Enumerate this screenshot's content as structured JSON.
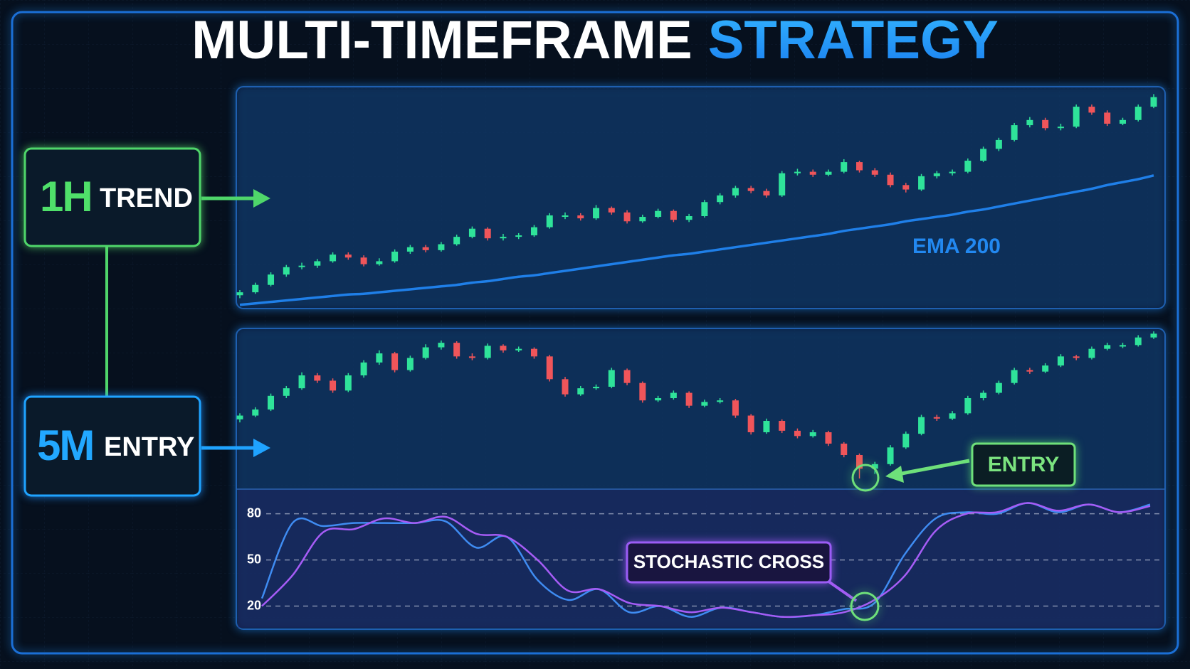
{
  "title": {
    "main": "MULTI-TIMEFRAME",
    "accent": "STRATEGY"
  },
  "timeframes": [
    {
      "code": "1H",
      "label": "TREND"
    },
    {
      "code": "5M",
      "label": "ENTRY"
    }
  ],
  "chart_data": [
    {
      "type": "candlestick",
      "ylim": [
        -10,
        290
      ],
      "up_color": "#2fe39a",
      "down_color": "#f0555a",
      "candles": [
        [
          8,
          15,
          4,
          12
        ],
        [
          12,
          25,
          10,
          22
        ],
        [
          22,
          39,
          20,
          36
        ],
        [
          36,
          49,
          33,
          46
        ],
        [
          46,
          52,
          43,
          48
        ],
        [
          48,
          57,
          45,
          54
        ],
        [
          54,
          66,
          52,
          63
        ],
        [
          63,
          66,
          56,
          59
        ],
        [
          59,
          62,
          47,
          50
        ],
        [
          50,
          58,
          48,
          54
        ],
        [
          54,
          70,
          52,
          67
        ],
        [
          67,
          76,
          64,
          73
        ],
        [
          73,
          76,
          66,
          69
        ],
        [
          69,
          80,
          67,
          77
        ],
        [
          77,
          90,
          75,
          87
        ],
        [
          87,
          101,
          85,
          98
        ],
        [
          98,
          100,
          82,
          85
        ],
        [
          85,
          91,
          82,
          87
        ],
        [
          87,
          92,
          84,
          89
        ],
        [
          89,
          103,
          87,
          100
        ],
        [
          100,
          119,
          98,
          116
        ],
        [
          114,
          120,
          111,
          116
        ],
        [
          116,
          119,
          109,
          112
        ],
        [
          112,
          130,
          110,
          126
        ],
        [
          126,
          128,
          117,
          120
        ],
        [
          120,
          123,
          105,
          108
        ],
        [
          108,
          117,
          106,
          114
        ],
        [
          114,
          125,
          112,
          122
        ],
        [
          122,
          124,
          107,
          110
        ],
        [
          110,
          118,
          107,
          115
        ],
        [
          115,
          137,
          113,
          134
        ],
        [
          134,
          146,
          131,
          143
        ],
        [
          143,
          156,
          140,
          153
        ],
        [
          153,
          156,
          146,
          149
        ],
        [
          149,
          152,
          140,
          143
        ],
        [
          143,
          176,
          141,
          173
        ],
        [
          173,
          179,
          170,
          175
        ],
        [
          175,
          178,
          168,
          171
        ],
        [
          171,
          178,
          169,
          175
        ],
        [
          175,
          192,
          173,
          188
        ],
        [
          188,
          190,
          174,
          177
        ],
        [
          177,
          180,
          168,
          171
        ],
        [
          171,
          174,
          154,
          157
        ],
        [
          157,
          160,
          147,
          151
        ],
        [
          151,
          172,
          149,
          169
        ],
        [
          169,
          176,
          166,
          173
        ],
        [
          173,
          178,
          170,
          175
        ],
        [
          175,
          193,
          173,
          190
        ],
        [
          190,
          209,
          188,
          206
        ],
        [
          206,
          221,
          203,
          218
        ],
        [
          218,
          241,
          216,
          238
        ],
        [
          238,
          249,
          235,
          245
        ],
        [
          245,
          248,
          231,
          234
        ],
        [
          234,
          240,
          231,
          236
        ],
        [
          236,
          266,
          234,
          263
        ],
        [
          263,
          266,
          252,
          255
        ],
        [
          255,
          258,
          237,
          240
        ],
        [
          240,
          248,
          238,
          245
        ],
        [
          245,
          266,
          243,
          263
        ],
        [
          263,
          280,
          261,
          276
        ]
      ],
      "ema": {
        "name": "EMA 200",
        "color": "#1f7fe8",
        "values": [
          -5,
          -3,
          -1,
          1,
          3,
          5,
          7,
          9,
          10,
          12,
          14,
          16,
          18,
          20,
          22,
          25,
          27,
          30,
          33,
          35,
          38,
          41,
          44,
          47,
          50,
          53,
          56,
          59,
          62,
          64,
          67,
          70,
          73,
          76,
          79,
          82,
          85,
          88,
          91,
          95,
          98,
          101,
          104,
          108,
          111,
          114,
          117,
          121,
          124,
          128,
          132,
          136,
          140,
          144,
          148,
          152,
          157,
          161,
          165,
          170
        ]
      }
    },
    {
      "type": "candlestick",
      "ylim": [
        0,
        210
      ],
      "up_color": "#2fe39a",
      "down_color": "#f0555a",
      "annotation": "ENTRY",
      "candles": [
        [
          92,
          100,
          88,
          97
        ],
        [
          97,
          108,
          95,
          105
        ],
        [
          105,
          126,
          103,
          123
        ],
        [
          123,
          136,
          120,
          133
        ],
        [
          133,
          154,
          131,
          150
        ],
        [
          150,
          153,
          140,
          143
        ],
        [
          143,
          146,
          127,
          130
        ],
        [
          130,
          153,
          128,
          150
        ],
        [
          150,
          170,
          147,
          167
        ],
        [
          167,
          183,
          164,
          179
        ],
        [
          179,
          181,
          154,
          157
        ],
        [
          157,
          176,
          155,
          173
        ],
        [
          173,
          191,
          171,
          187
        ],
        [
          187,
          196,
          184,
          193
        ],
        [
          193,
          195,
          172,
          175
        ],
        [
          175,
          179,
          170,
          173
        ],
        [
          173,
          192,
          171,
          189
        ],
        [
          189,
          191,
          180,
          183
        ],
        [
          183,
          188,
          181,
          185
        ],
        [
          185,
          187,
          172,
          175
        ],
        [
          175,
          177,
          142,
          145
        ],
        [
          145,
          148,
          122,
          125
        ],
        [
          125,
          136,
          123,
          133
        ],
        [
          133,
          138,
          131,
          135
        ],
        [
          135,
          160,
          133,
          157
        ],
        [
          157,
          159,
          137,
          140
        ],
        [
          140,
          142,
          114,
          117
        ],
        [
          117,
          123,
          115,
          120
        ],
        [
          120,
          130,
          118,
          127
        ],
        [
          127,
          129,
          107,
          110
        ],
        [
          110,
          118,
          108,
          115
        ],
        [
          115,
          120,
          113,
          117
        ],
        [
          117,
          119,
          94,
          97
        ],
        [
          97,
          99,
          72,
          75
        ],
        [
          75,
          93,
          73,
          90
        ],
        [
          90,
          92,
          74,
          77
        ],
        [
          77,
          80,
          67,
          70
        ],
        [
          70,
          78,
          68,
          75
        ],
        [
          75,
          77,
          57,
          60
        ],
        [
          60,
          62,
          42,
          45
        ],
        [
          45,
          47,
          14,
          27
        ],
        [
          27,
          36,
          20,
          33
        ],
        [
          33,
          58,
          31,
          55
        ],
        [
          55,
          76,
          53,
          73
        ],
        [
          73,
          98,
          71,
          95
        ],
        [
          95,
          98,
          90,
          93
        ],
        [
          93,
          103,
          91,
          100
        ],
        [
          100,
          123,
          98,
          120
        ],
        [
          120,
          130,
          117,
          127
        ],
        [
          127,
          143,
          125,
          140
        ],
        [
          140,
          160,
          138,
          157
        ],
        [
          157,
          160,
          152,
          155
        ],
        [
          155,
          166,
          153,
          163
        ],
        [
          163,
          178,
          161,
          175
        ],
        [
          175,
          177,
          170,
          173
        ],
        [
          173,
          188,
          171,
          185
        ],
        [
          185,
          193,
          183,
          190
        ],
        [
          188,
          193,
          186,
          190
        ],
        [
          190,
          203,
          188,
          200
        ],
        [
          200,
          208,
          198,
          205
        ]
      ]
    },
    {
      "type": "line",
      "ylim": [
        5,
        96
      ],
      "yticks": [
        80,
        50,
        20
      ],
      "annotation": "STOCHASTIC CROSS",
      "series": [
        {
          "color": "#3f8cf2",
          "values": [
            25,
            74,
            72,
            74,
            74,
            74,
            75,
            58,
            65,
            37,
            24,
            31,
            16,
            20,
            13,
            19,
            16,
            13,
            14,
            18,
            22,
            54,
            77,
            81,
            80,
            87,
            81,
            86,
            81,
            86
          ]
        },
        {
          "color": "#a65cf6",
          "values": [
            20,
            40,
            68,
            70,
            77,
            74,
            78,
            67,
            65,
            50,
            30,
            31,
            22,
            20,
            16,
            19,
            16,
            13,
            14,
            16,
            24,
            40,
            69,
            80,
            81,
            87,
            82,
            86,
            81,
            85
          ]
        }
      ]
    }
  ]
}
